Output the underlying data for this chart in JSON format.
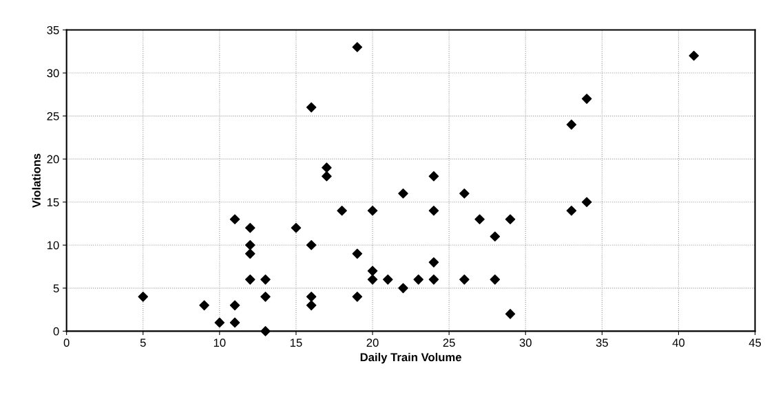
{
  "chart_data": {
    "type": "scatter",
    "xlabel": "Daily Train Volume",
    "ylabel": "Violations",
    "x": [
      5,
      9,
      10,
      11,
      11,
      11,
      12,
      12,
      12,
      12,
      13,
      13,
      13,
      15,
      16,
      16,
      16,
      16,
      17,
      17,
      18,
      19,
      19,
      19,
      20,
      20,
      20,
      21,
      22,
      22,
      23,
      24,
      24,
      24,
      24,
      26,
      26,
      27,
      28,
      28,
      29,
      29,
      33,
      33,
      34,
      34,
      41
    ],
    "values": [
      4,
      3,
      1,
      13,
      3,
      1,
      12,
      10,
      9,
      6,
      6,
      4,
      0,
      12,
      26,
      10,
      4,
      3,
      19,
      18,
      14,
      33,
      9,
      4,
      14,
      7,
      6,
      6,
      16,
      5,
      6,
      18,
      14,
      8,
      6,
      16,
      6,
      13,
      11,
      6,
      13,
      2,
      24,
      14,
      27,
      15,
      32
    ],
    "color": "#000000",
    "marker": "diamond",
    "xlim": [
      0,
      45
    ],
    "xticks": [
      0,
      5,
      10,
      15,
      20,
      25,
      30,
      35,
      40,
      45
    ],
    "ylim": [
      0,
      35
    ],
    "yticks": [
      0,
      5,
      10,
      15,
      20,
      25,
      30,
      35
    ],
    "grid": true
  }
}
